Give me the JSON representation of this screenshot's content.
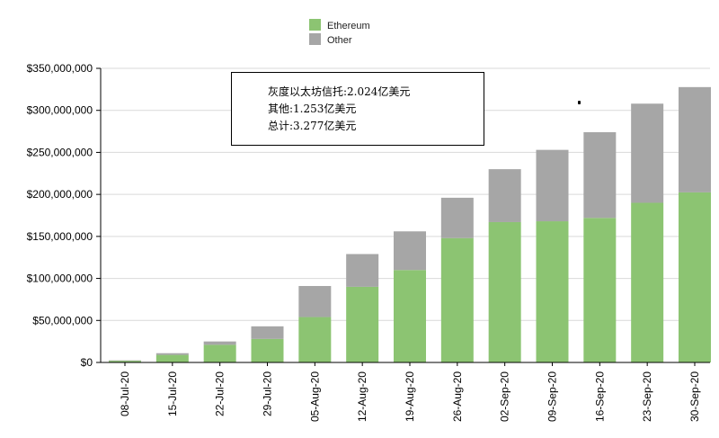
{
  "chart_data": {
    "type": "bar",
    "stacked": true,
    "categories": [
      "08-Jul-20",
      "15-Jul-20",
      "22-Jul-20",
      "29-Jul-20",
      "05-Aug-20",
      "12-Aug-20",
      "19-Aug-20",
      "26-Aug-20",
      "02-Sep-20",
      "09-Sep-20",
      "16-Sep-20",
      "23-Sep-20",
      "30-Sep-20"
    ],
    "series": [
      {
        "name": "Ethereum",
        "color": "#8cc472",
        "values": [
          2000000,
          9000000,
          21000000,
          28000000,
          54000000,
          90000000,
          110000000,
          148000000,
          167000000,
          168000000,
          172000000,
          190000000,
          202400000
        ]
      },
      {
        "name": "Other",
        "color": "#a6a6a6",
        "values": [
          500000,
          2000000,
          4000000,
          15000000,
          37000000,
          39000000,
          46000000,
          48000000,
          63000000,
          85000000,
          102000000,
          118000000,
          125300000
        ]
      }
    ],
    "yticks": [
      "$0",
      "$50,000,000",
      "$100,000,000",
      "$150,000,000",
      "$200,000,000",
      "$250,000,000",
      "$300,000,000",
      "$350,000,000"
    ],
    "ylim": [
      0,
      350000000
    ],
    "grid": true,
    "legend_position": "top-center",
    "annotations": [
      "灰度以太坊信托:2.024亿美元",
      "其他:1.253亿美元",
      "总计:3.277亿美元"
    ]
  }
}
